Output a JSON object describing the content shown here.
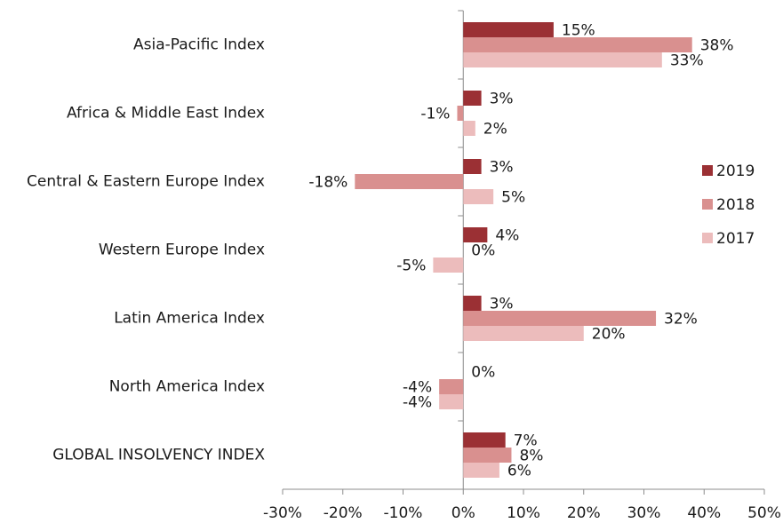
{
  "chart_data": {
    "type": "hbar",
    "categories": [
      "Asia-Pacific Index",
      "Africa & Middle East Index",
      "Central & Eastern Europe Index",
      "Western Europe Index",
      "Latin America Index",
      "North America Index",
      "GLOBAL INSOLVENCY INDEX"
    ],
    "series": [
      {
        "name": "2019",
        "color": "#9b3034",
        "values": [
          15,
          3,
          3,
          4,
          3,
          0,
          7
        ],
        "value_labels": [
          "15%",
          "3%",
          "3%",
          "4%",
          "3%",
          "0%",
          "7%"
        ]
      },
      {
        "name": "2018",
        "color": "#d9908f",
        "values": [
          38,
          -1,
          -18,
          0,
          32,
          -4,
          8
        ],
        "value_labels": [
          "38%",
          "-1%",
          "-18%",
          "0%",
          "32%",
          "-4%",
          "8%"
        ]
      },
      {
        "name": "2017",
        "color": "#ecbcbc",
        "values": [
          33,
          2,
          5,
          -5,
          20,
          -4,
          6
        ],
        "value_labels": [
          "33%",
          "2%",
          "5%",
          "-5%",
          "20%",
          "-4%",
          "6%"
        ]
      }
    ],
    "xlim": [
      -30,
      50
    ],
    "xticks": [
      {
        "value": -30,
        "label": "-30%"
      },
      {
        "value": -20,
        "label": "-20%"
      },
      {
        "value": -10,
        "label": "-10%"
      },
      {
        "value": 0,
        "label": "0%"
      },
      {
        "value": 10,
        "label": "10%"
      },
      {
        "value": 20,
        "label": "20%"
      },
      {
        "value": 30,
        "label": "30%"
      },
      {
        "value": 40,
        "label": "40%"
      },
      {
        "value": 50,
        "label": "50%"
      }
    ],
    "legend": "right"
  }
}
